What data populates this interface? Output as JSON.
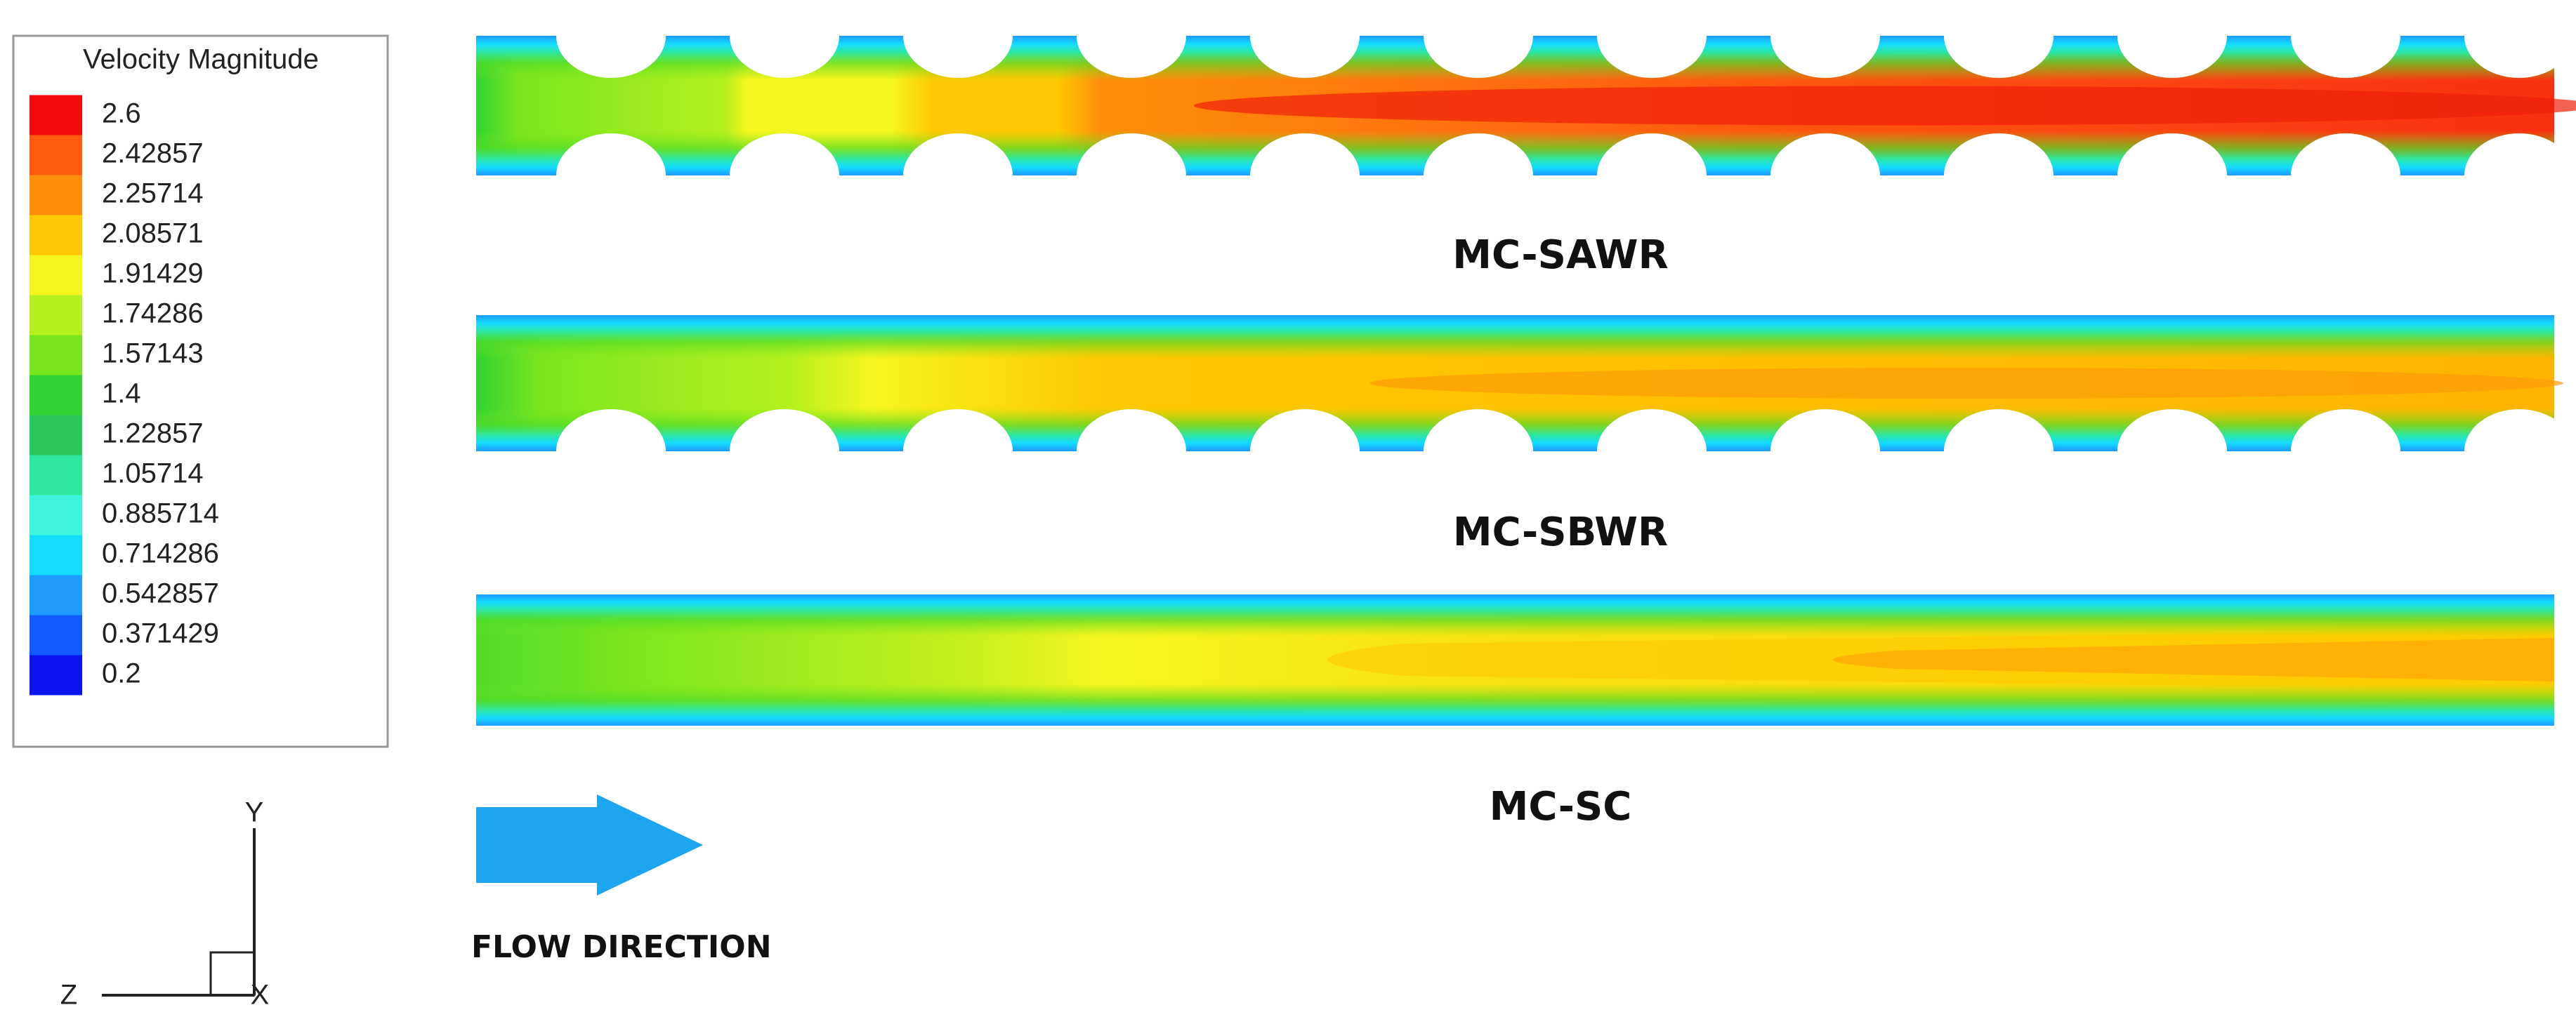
{
  "legend": {
    "title": "Velocity Magnitude",
    "entries": [
      {
        "label": "2.6",
        "color": "#f50a0a"
      },
      {
        "label": "2.42857",
        "color": "#ff5a0f"
      },
      {
        "label": "2.25714",
        "color": "#ff8f0a"
      },
      {
        "label": "2.08571",
        "color": "#ffc800"
      },
      {
        "label": "1.91429",
        "color": "#f5f51e"
      },
      {
        "label": "1.74286",
        "color": "#b4f01e"
      },
      {
        "label": "1.57143",
        "color": "#78e61e"
      },
      {
        "label": "1.4",
        "color": "#32d232"
      },
      {
        "label": "1.22857",
        "color": "#28c85a"
      },
      {
        "label": "1.05714",
        "color": "#2de6a0"
      },
      {
        "label": "0.885714",
        "color": "#3cf5dc"
      },
      {
        "label": "0.714286",
        "color": "#14dcff"
      },
      {
        "label": "0.542857",
        "color": "#1e9bff"
      },
      {
        "label": "0.371429",
        "color": "#145aff"
      },
      {
        "label": "0.2",
        "color": "#0a14f0"
      }
    ]
  },
  "panels": [
    {
      "label": "MC-SAWR"
    },
    {
      "label": "MC-SBWR"
    },
    {
      "label": "MC-SC"
    }
  ],
  "flow_direction": "FLOW DIRECTION",
  "axes": {
    "y": "Y",
    "z": "Z",
    "x": "X"
  }
}
